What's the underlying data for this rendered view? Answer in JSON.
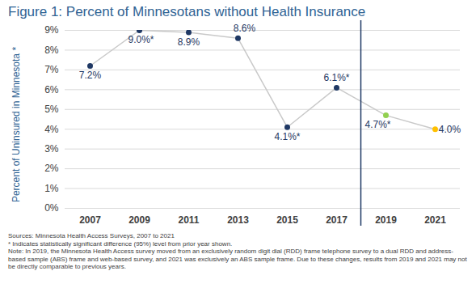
{
  "chart_data": {
    "type": "line",
    "title": "Figure 1: Percent of Minnesotans without Health Insurance",
    "y_label": "Percent of Uninsured in Minnesota *",
    "categories": [
      "2007",
      "2009",
      "2011",
      "2013",
      "2015",
      "2017",
      "2019",
      "2021"
    ],
    "values": [
      7.2,
      9.0,
      8.9,
      8.6,
      4.1,
      6.1,
      4.7,
      4.0
    ],
    "value_labels": [
      "7.2%",
      "9.0%*",
      "8.9%",
      "8.6%",
      "4.1%*",
      "6.1%*",
      "4.7%*",
      "4.0%"
    ],
    "data_labels": true,
    "color": "#c9c9c9",
    "colors": [
      "#1f3864",
      "#1f3864",
      "#1f3864",
      "#1f3864",
      "#1f3864",
      "#1f3864",
      "#92d050",
      "#ffc000"
    ],
    "marker": "circle",
    "ylim": [
      0,
      9
    ],
    "yticks": [
      {
        "value": 0,
        "label": "0%"
      },
      {
        "value": 1,
        "label": "1%"
      },
      {
        "value": 2,
        "label": "2%"
      },
      {
        "value": 3,
        "label": "3%"
      },
      {
        "value": 4,
        "label": "4%"
      },
      {
        "value": 5,
        "label": "5%"
      },
      {
        "value": 6,
        "label": "6%"
      },
      {
        "value": 7,
        "label": "7%"
      },
      {
        "value": 8,
        "label": "8%"
      },
      {
        "value": 9,
        "label": "9%"
      }
    ],
    "grid": true,
    "caption": [
      "Sources: Minnesota Health Access Surveys, 2007 to 2021",
      "* Indicates statistically significant difference (95%) level from prior year shown.",
      "Note: In 2019, the Minnesota Health Access survey moved from an exclusively random digit dial (RDD) frame telephone survey to a dual RDD and address-based sample (ABS) frame and web-based survey, and 2021 was exclusively an ABS sample frame. Due to these changes, results from 2019 and 2021 may not be directly comparable to previous years."
    ]
  }
}
